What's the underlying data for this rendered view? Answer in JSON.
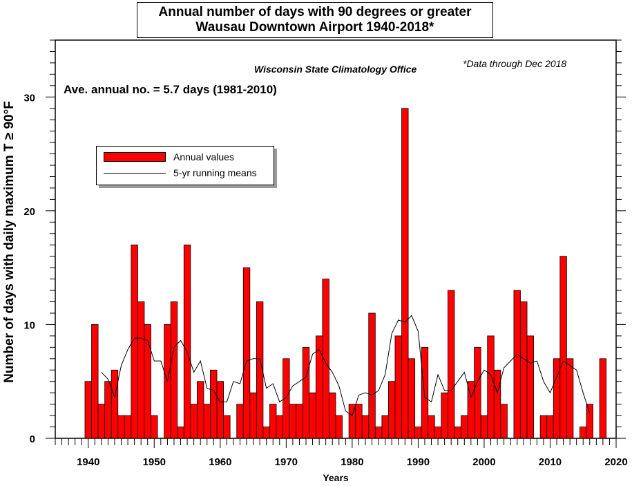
{
  "title": {
    "line1": "Annual number of days with 90 degrees or greater",
    "line2": "Wausau Downtown Airport 1940-2018*"
  },
  "notes": {
    "source": "Wisconsin State Climatology Office",
    "through": "*Data through Dec 2018",
    "average": "Ave. annual no. = 5.7 days (1981-2010)"
  },
  "chart_data": {
    "type": "bar",
    "xlabel": "Years",
    "ylabel": "Number of days with daily maximum T ≥ 90°F",
    "xlim": [
      1935,
      2020
    ],
    "ylim": [
      0,
      35
    ],
    "x_ticks": [
      1940,
      1950,
      1960,
      1970,
      1980,
      1990,
      2000,
      2010,
      2020
    ],
    "y_ticks": [
      0,
      10,
      20,
      30
    ],
    "grid": false,
    "legend_position": "upper-left",
    "series": [
      {
        "name": "Annual values",
        "color": "#ff0000",
        "x": [
          1940,
          1941,
          1942,
          1943,
          1944,
          1945,
          1946,
          1947,
          1948,
          1949,
          1950,
          1951,
          1952,
          1953,
          1954,
          1955,
          1956,
          1957,
          1958,
          1959,
          1960,
          1961,
          1962,
          1963,
          1964,
          1965,
          1966,
          1967,
          1968,
          1969,
          1970,
          1971,
          1972,
          1973,
          1974,
          1975,
          1976,
          1977,
          1978,
          1979,
          1980,
          1981,
          1982,
          1983,
          1984,
          1985,
          1986,
          1987,
          1988,
          1989,
          1990,
          1991,
          1992,
          1993,
          1994,
          1995,
          1996,
          1997,
          1998,
          1999,
          2000,
          2001,
          2002,
          2003,
          2004,
          2005,
          2006,
          2007,
          2008,
          2009,
          2010,
          2011,
          2012,
          2013,
          2014,
          2015,
          2016,
          2017,
          2018
        ],
        "values": [
          5,
          10,
          3,
          5,
          6,
          2,
          2,
          17,
          12,
          10,
          2,
          0,
          10,
          12,
          1,
          17,
          3,
          5,
          3,
          6,
          5,
          2,
          0,
          3,
          15,
          4,
          12,
          1,
          3,
          2,
          7,
          3,
          3,
          8,
          4,
          9,
          14,
          4,
          2,
          0,
          3,
          3,
          2,
          11,
          1,
          2,
          5,
          9,
          29,
          7,
          1,
          8,
          2,
          1,
          4,
          13,
          1,
          2,
          5,
          8,
          2,
          9,
          6,
          3,
          0,
          13,
          12,
          9,
          0,
          2,
          2,
          7,
          16,
          7,
          0,
          1,
          3,
          0,
          7
        ]
      },
      {
        "name": "5-yr running means",
        "color": "#000000",
        "x": [
          1942,
          1943,
          1944,
          1945,
          1946,
          1947,
          1948,
          1949,
          1950,
          1951,
          1952,
          1953,
          1954,
          1955,
          1956,
          1957,
          1958,
          1959,
          1960,
          1961,
          1962,
          1963,
          1964,
          1965,
          1966,
          1967,
          1968,
          1969,
          1970,
          1971,
          1972,
          1973,
          1974,
          1975,
          1976,
          1977,
          1978,
          1979,
          1980,
          1981,
          1982,
          1983,
          1984,
          1985,
          1986,
          1987,
          1988,
          1989,
          1990,
          1991,
          1992,
          1993,
          1994,
          1995,
          1996,
          1997,
          1998,
          1999,
          2000,
          2001,
          2002,
          2003,
          2004,
          2005,
          2006,
          2007,
          2008,
          2009,
          2010,
          2011,
          2012,
          2013,
          2014,
          2015,
          2016
        ],
        "values": [
          5.8,
          5.2,
          3.6,
          6.4,
          7.8,
          8.8,
          8.8,
          8.6,
          6.8,
          6.8,
          5.0,
          8.0,
          8.6,
          7.6,
          5.8,
          6.8,
          4.4,
          4.2,
          3.2,
          3.2,
          5.0,
          4.8,
          6.8,
          7.0,
          7.0,
          4.4,
          4.8,
          3.2,
          3.6,
          4.6,
          5.0,
          5.4,
          7.4,
          7.8,
          6.6,
          5.8,
          4.6,
          2.4,
          2.0,
          3.8,
          4.0,
          3.8,
          4.2,
          5.6,
          9.2,
          10.4,
          10.2,
          10.8,
          9.4,
          3.6,
          3.2,
          5.6,
          4.2,
          4.2,
          5.0,
          5.8,
          3.6,
          5.0,
          6.0,
          5.6,
          4.0,
          6.2,
          6.8,
          7.4,
          7.0,
          6.6,
          6.8,
          5.0,
          4.0,
          5.4,
          6.8,
          6.4,
          6.0,
          4.0,
          2.2
        ]
      }
    ]
  }
}
